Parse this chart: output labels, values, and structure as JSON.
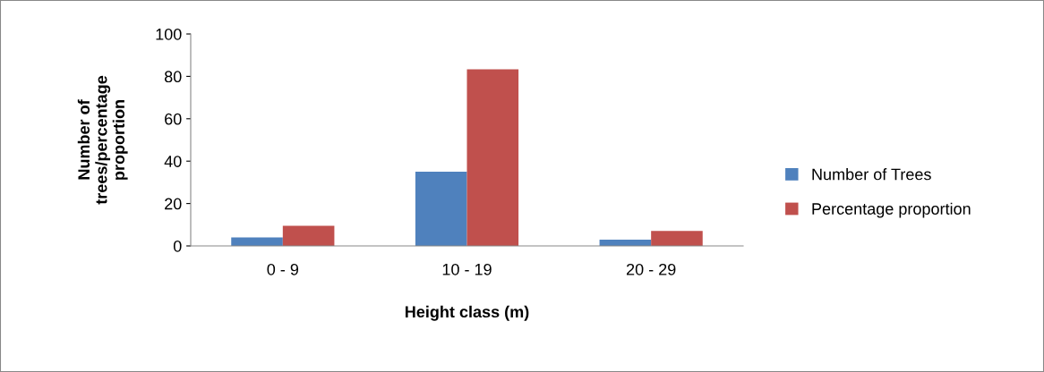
{
  "chart_data": {
    "type": "bar",
    "categories": [
      "0 - 9",
      "10 - 19",
      "20 - 29"
    ],
    "series": [
      {
        "name": "Number of Trees",
        "color": "#4f81bd",
        "values": [
          4,
          35,
          3
        ]
      },
      {
        "name": "Percentage proportion",
        "color": "#c0504d",
        "values": [
          9.5,
          83.3,
          7.1
        ]
      }
    ],
    "xlabel": "Height class (m)",
    "ylabel": "Number of\ntrees/percentage\nproportion",
    "ylim": [
      0,
      100
    ],
    "yticks": [
      0,
      20,
      40,
      60,
      80,
      100
    ],
    "grid": false,
    "legend": "right"
  }
}
